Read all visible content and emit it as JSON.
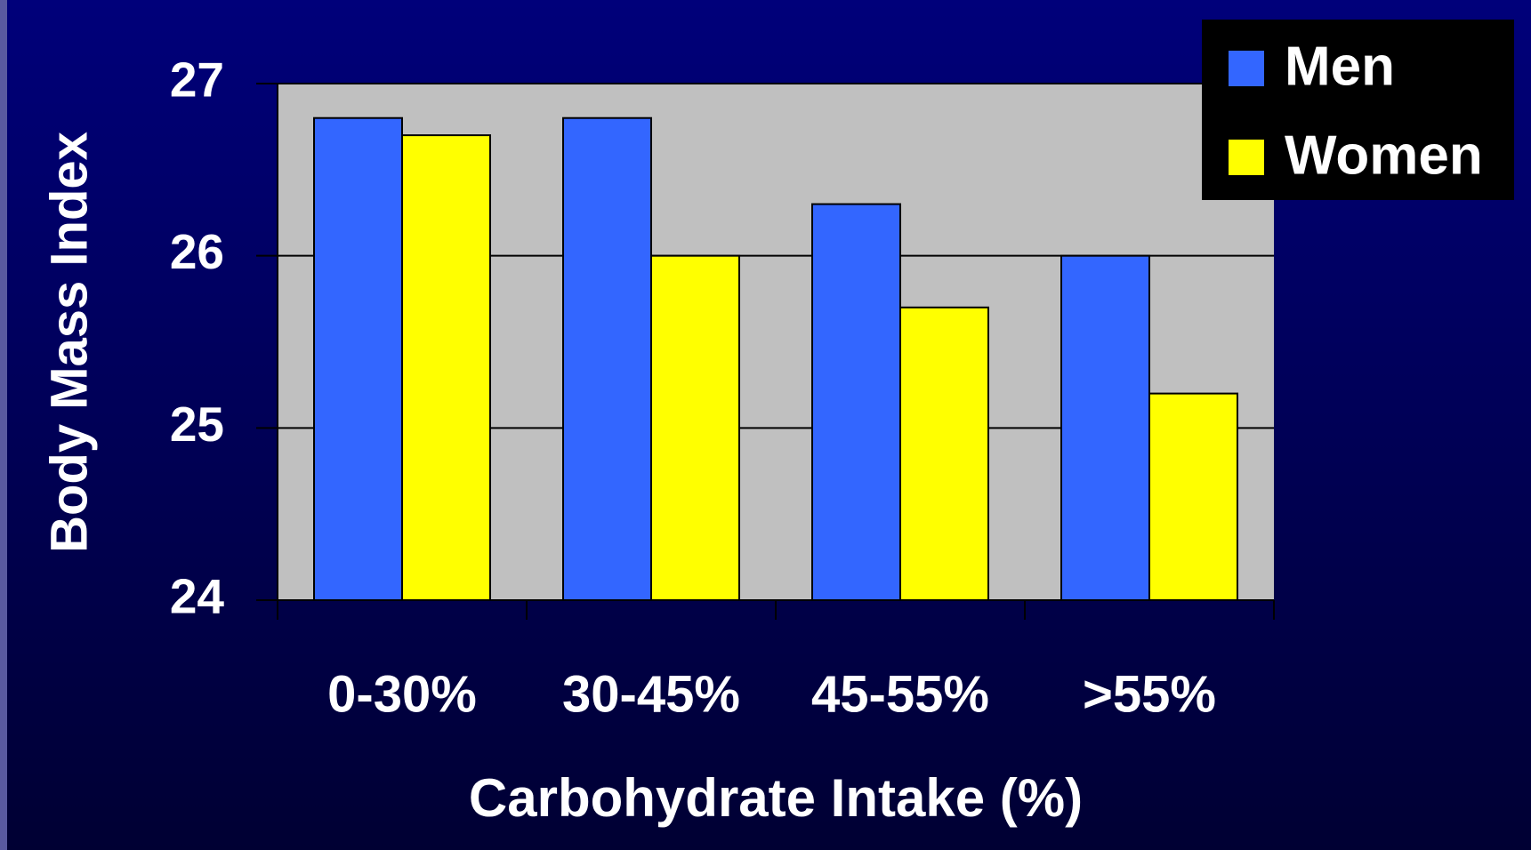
{
  "chart_data": {
    "type": "bar",
    "categories": [
      "0-30%",
      "30-45%",
      "45-55%",
      ">55%"
    ],
    "series": [
      {
        "name": "Men",
        "color": "#3366ff",
        "values": [
          26.8,
          26.8,
          26.3,
          26.0
        ]
      },
      {
        "name": "Women",
        "color": "#ffff00",
        "values": [
          26.7,
          26.0,
          25.7,
          25.2
        ]
      }
    ],
    "xlabel": "Carbohydrate Intake (%)",
    "ylabel": "Body Mass Index",
    "ylim": [
      24,
      27
    ],
    "yticks": [
      24,
      25,
      26,
      27
    ],
    "grid": true,
    "legend": "top-right"
  }
}
